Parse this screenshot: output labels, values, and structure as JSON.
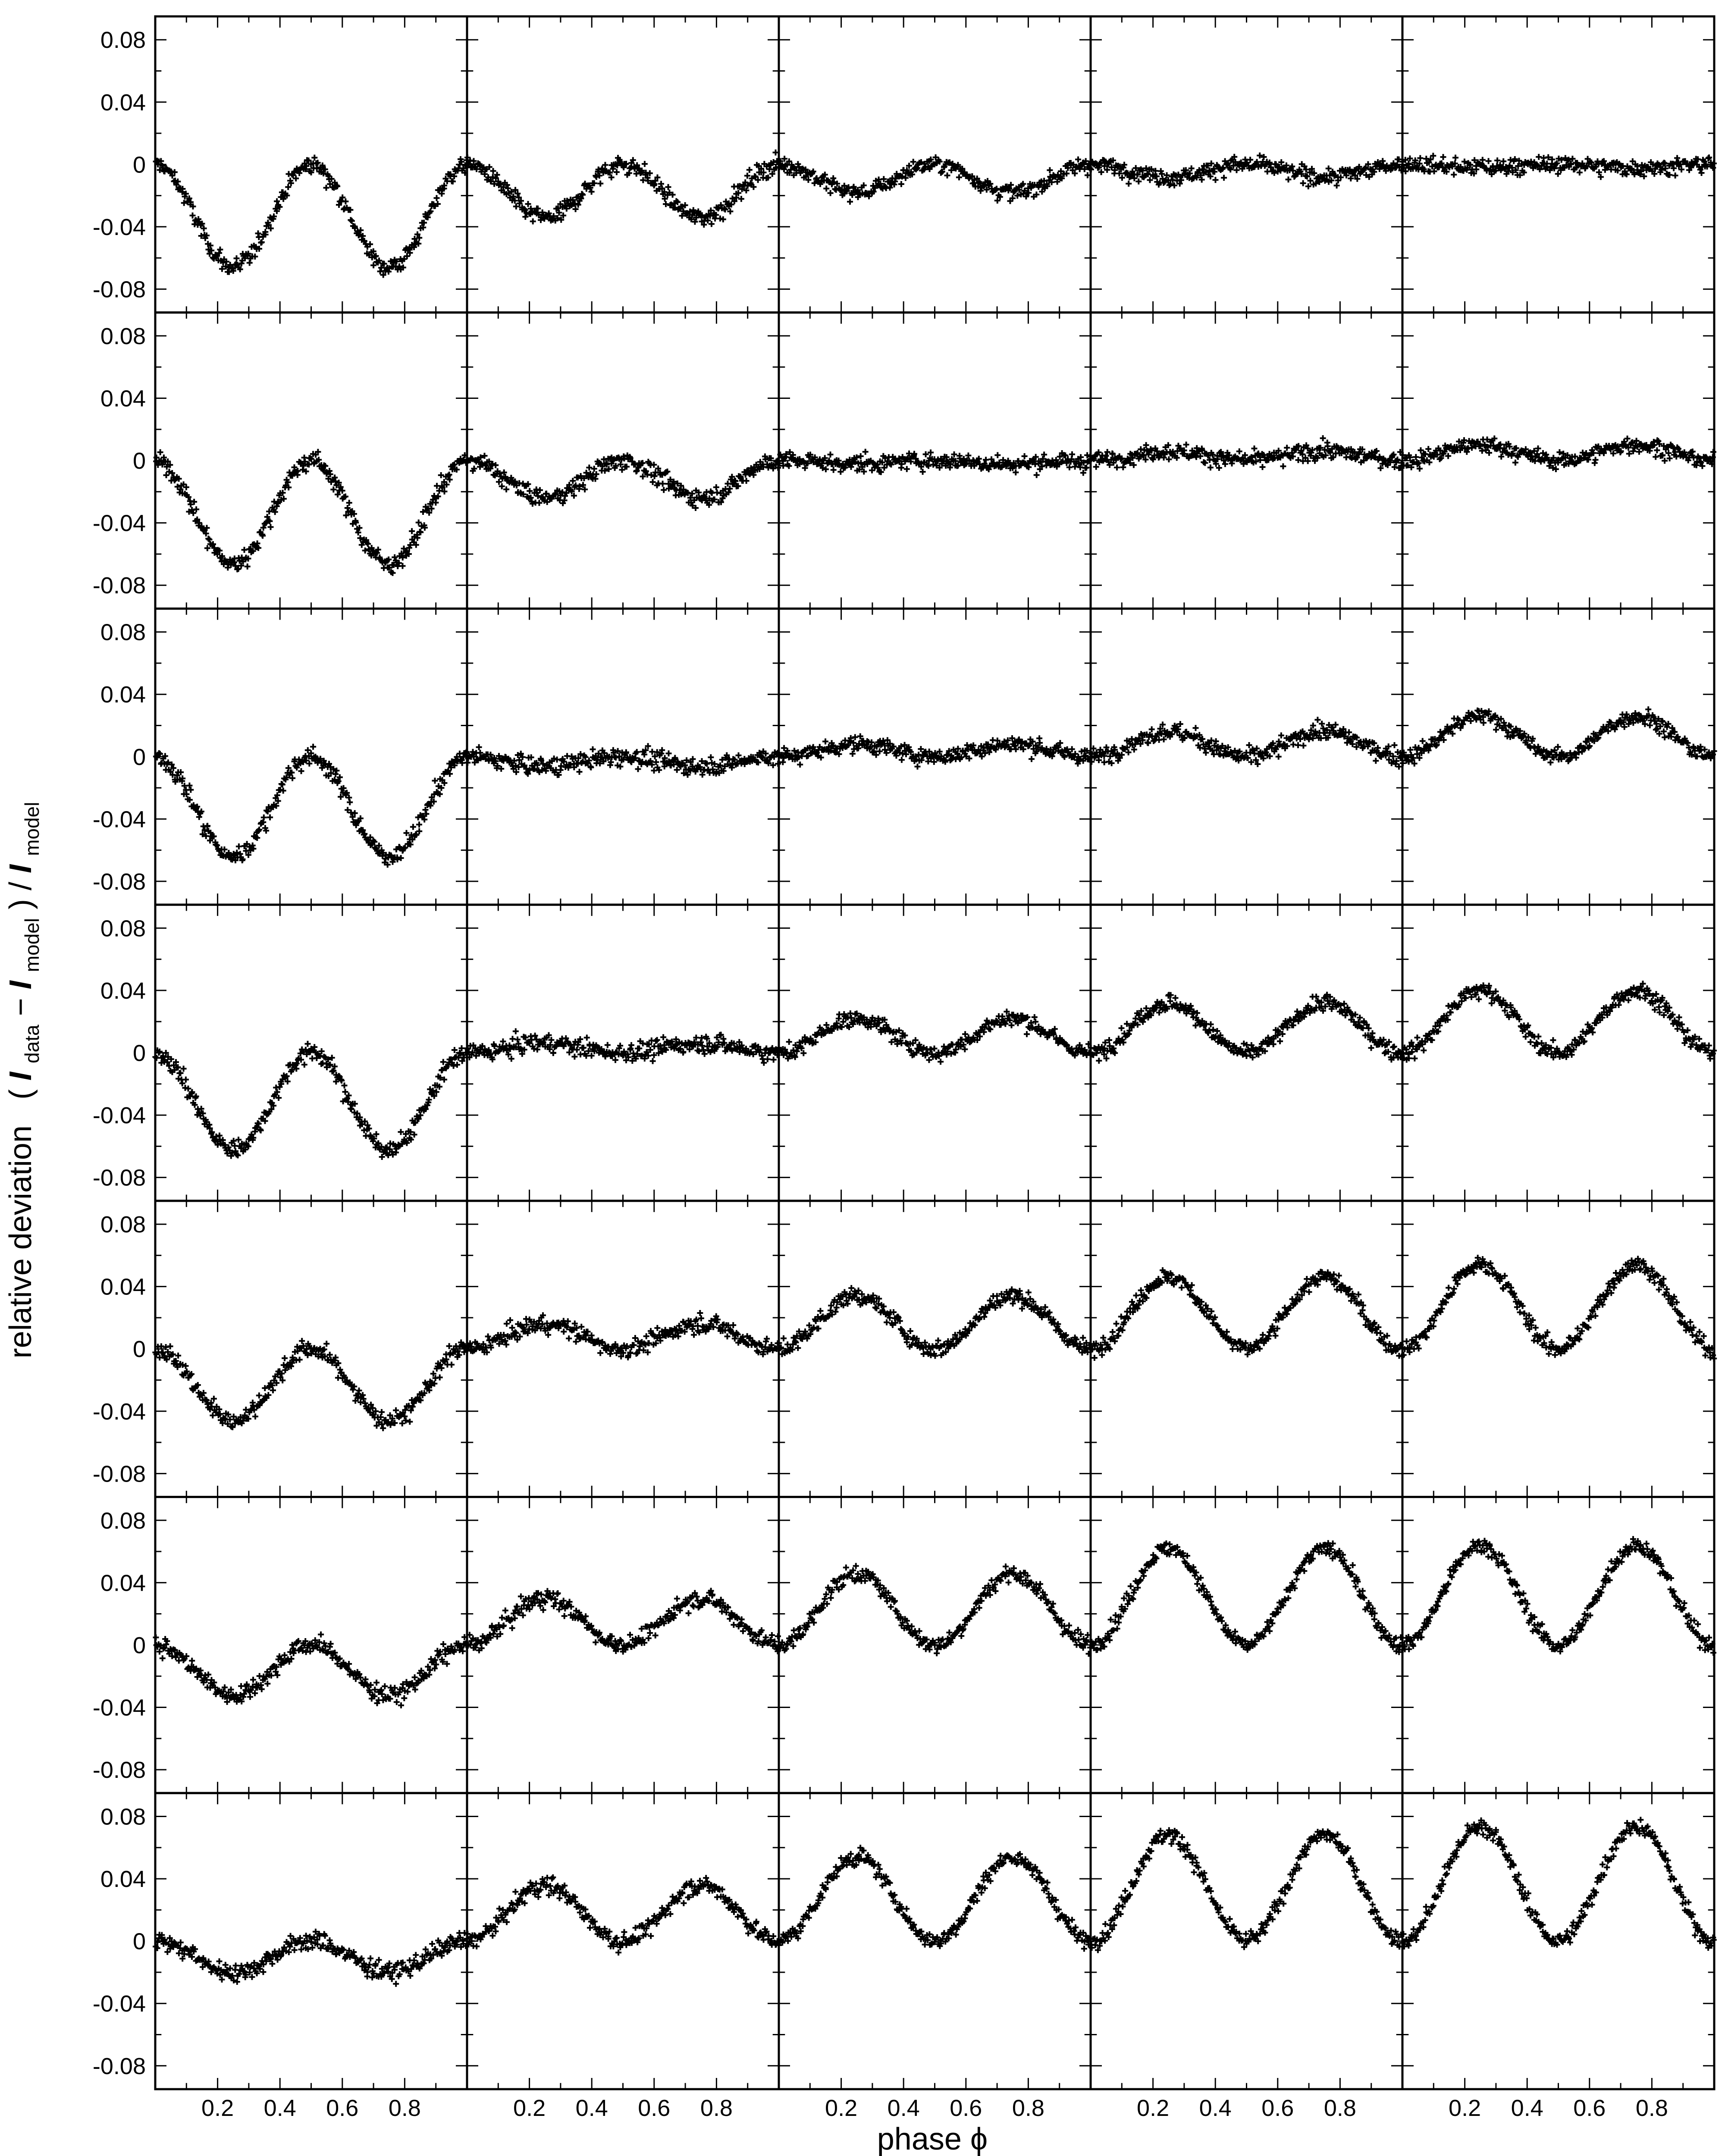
{
  "chart_data": {
    "type": "scatter",
    "layout": {
      "rows": 7,
      "cols": 5,
      "shared_axes": true
    },
    "xlabel": "phase ϕ",
    "ylabel": {
      "prefix": "relative deviation",
      "open_paren": "(",
      "i1": "I",
      "sub1": "data",
      "minus": " − ",
      "i2": "I",
      "sub2": "model",
      "close": ") / ",
      "i3": "I",
      "sub3": "model"
    },
    "xlim": [
      0,
      1
    ],
    "ylim": [
      -0.095,
      0.095
    ],
    "x_ticks": [
      0.2,
      0.4,
      0.6,
      0.8
    ],
    "x_tick_labels": [
      "0.2",
      "0.4",
      "0.6",
      "0.8"
    ],
    "y_ticks": [
      -0.08,
      -0.04,
      0,
      0.04,
      0.08
    ],
    "y_tick_labels": [
      "-0.08",
      "-0.04",
      "0",
      "0.04",
      "0.08"
    ],
    "grid": false,
    "marker": "+",
    "marker_color": "#000000",
    "points_per_panel": 300,
    "panels": [
      [
        {
          "a1": -0.033,
          "a2": 0.033,
          "ph": 0.0,
          "n": 0.005
        },
        {
          "a1": -0.017,
          "a2": 0.017,
          "ph": 0.0,
          "n": 0.005
        },
        {
          "a1": -0.009,
          "a2": 0.011,
          "ph": 0.0,
          "n": 0.0045
        },
        {
          "a1": -0.004,
          "a2": 0.006,
          "ph": 0.0,
          "n": 0.0045
        },
        {
          "a1": -0.001,
          "a2": 0.004,
          "ph": 0.0,
          "n": 0.0045
        }
      ],
      [
        {
          "a1": -0.033,
          "a2": 0.033,
          "ph": 0.0,
          "n": 0.005
        },
        {
          "a1": -0.012,
          "a2": 0.014,
          "ph": 0.0,
          "n": 0.005
        },
        {
          "a1": -0.001,
          "a2": 0.004,
          "ph": 0.0,
          "n": 0.0045
        },
        {
          "a1": 0.003,
          "a2": 0.004,
          "ph": 0.0,
          "n": 0.0045
        },
        {
          "a1": 0.005,
          "a2": 0.005,
          "ph": 0.0,
          "n": 0.0045
        }
      ],
      [
        {
          "a1": -0.032,
          "a2": 0.034,
          "ph": 0.0,
          "n": 0.005
        },
        {
          "a1": -0.003,
          "a2": 0.006,
          "ph": 0.0,
          "n": 0.0048
        },
        {
          "a1": 0.004,
          "a2": 0.004,
          "ph": 0.0,
          "n": 0.0045
        },
        {
          "a1": 0.008,
          "a2": 0.006,
          "ph": 0.0,
          "n": 0.0045
        },
        {
          "a1": 0.013,
          "a2": 0.01,
          "ph": 0.0,
          "n": 0.0045
        }
      ],
      [
        {
          "a1": -0.031,
          "a2": 0.034,
          "ph": 0.0,
          "n": 0.005
        },
        {
          "a1": 0.003,
          "a2": 0.004,
          "ph": 0.0,
          "n": 0.0048
        },
        {
          "a1": 0.011,
          "a2": 0.01,
          "ph": 0.0,
          "n": 0.0045
        },
        {
          "a1": 0.016,
          "a2": 0.014,
          "ph": 0.0,
          "n": 0.0045
        },
        {
          "a1": 0.02,
          "a2": 0.017,
          "ph": 0.0,
          "n": 0.0045
        }
      ],
      [
        {
          "a1": -0.023,
          "a2": 0.028,
          "ph": 0.0,
          "n": 0.005
        },
        {
          "a1": 0.008,
          "a2": 0.007,
          "ph": 0.0,
          "n": 0.0048
        },
        {
          "a1": 0.017,
          "a2": 0.015,
          "ph": 0.0,
          "n": 0.0045
        },
        {
          "a1": 0.023,
          "a2": 0.02,
          "ph": 0.0,
          "n": 0.0045
        },
        {
          "a1": 0.027,
          "a2": 0.024,
          "ph": 0.0,
          "n": 0.0045
        }
      ],
      [
        {
          "a1": -0.016,
          "a2": 0.022,
          "ph": 0.0,
          "n": 0.005
        },
        {
          "a1": 0.015,
          "a2": 0.012,
          "ph": 0.0,
          "n": 0.0048
        },
        {
          "a1": 0.023,
          "a2": 0.02,
          "ph": 0.0,
          "n": 0.0045
        },
        {
          "a1": 0.031,
          "a2": 0.027,
          "ph": 0.0,
          "n": 0.0045
        },
        {
          "a1": 0.032,
          "a2": 0.029,
          "ph": 0.0,
          "n": 0.0045
        }
      ],
      [
        {
          "a1": -0.01,
          "a2": 0.018,
          "ph": 0.0,
          "n": 0.005
        },
        {
          "a1": 0.018,
          "a2": 0.016,
          "ph": 0.0,
          "n": 0.0048
        },
        {
          "a1": 0.027,
          "a2": 0.025,
          "ph": 0.0,
          "n": 0.0045
        },
        {
          "a1": 0.034,
          "a2": 0.031,
          "ph": 0.0,
          "n": 0.0045
        },
        {
          "a1": 0.037,
          "a2": 0.034,
          "ph": 0.0,
          "n": 0.0045
        }
      ]
    ]
  }
}
